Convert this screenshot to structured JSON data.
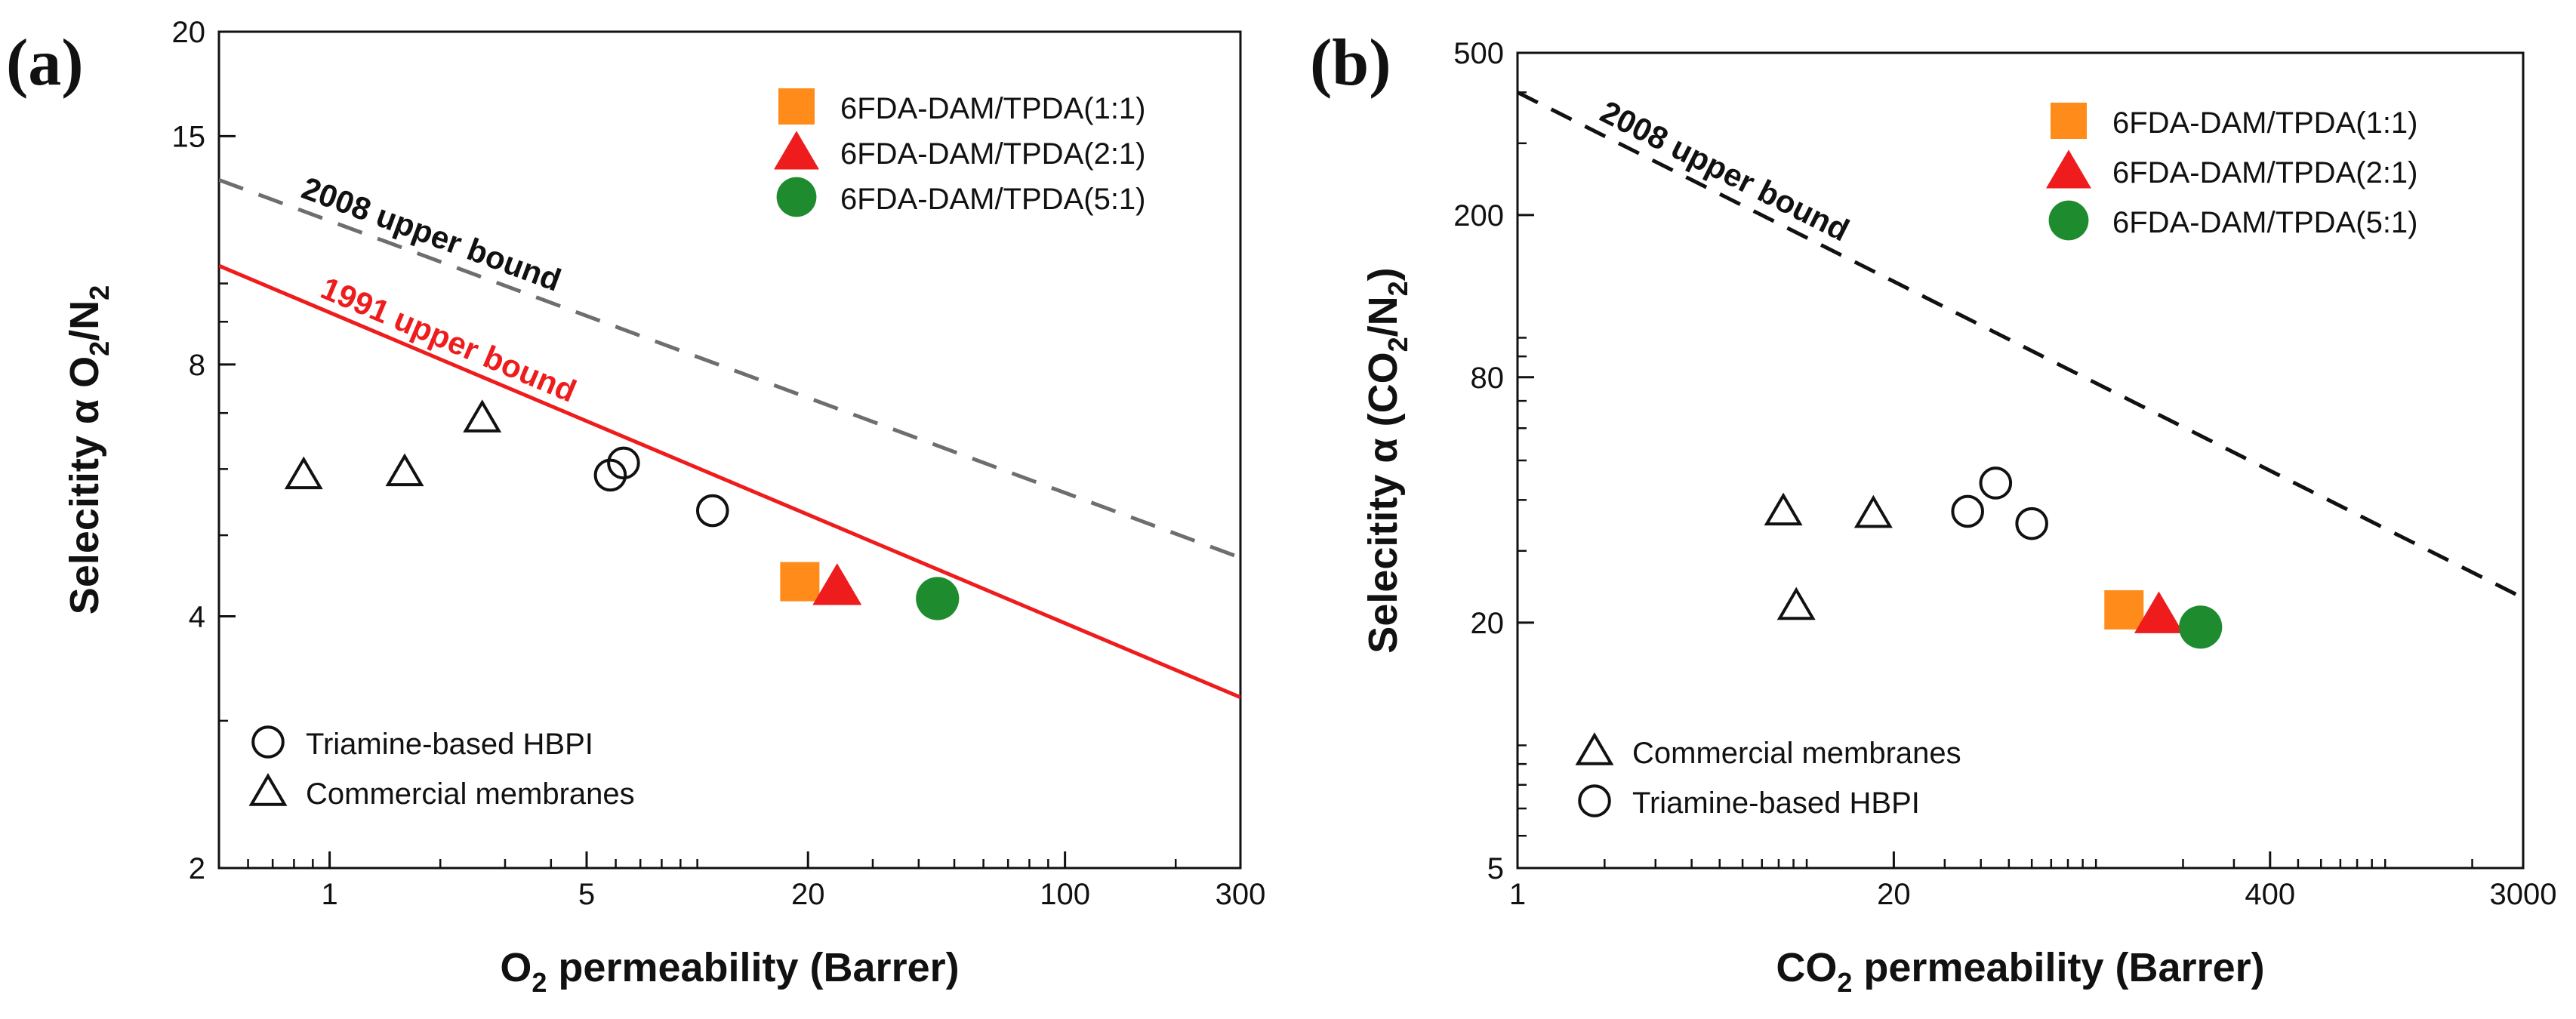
{
  "colors": {
    "orange": "#FF8C1A",
    "red": "#EE1C1C",
    "green": "#1E8C2E",
    "gray_dash": "#6E6E6E",
    "black": "#111111",
    "red_line": "#EE1C1C"
  },
  "chart_data": [
    {
      "type": "scatter",
      "panel_label": "(a)",
      "xlabel_main": "O",
      "xlabel_sub": "2",
      "xlabel_rest": " permeability (Barrer)",
      "ylabel_main": "Selecitity α O",
      "ylabel_sub1": "2",
      "ylabel_mid": "/N",
      "ylabel_sub2": "2",
      "xscale": "log",
      "yscale": "log",
      "xlim": [
        0.5,
        300
      ],
      "ylim": [
        2,
        20
      ],
      "xticks": [
        {
          "v": 1,
          "label": "1"
        },
        {
          "v": 5,
          "label": "5"
        },
        {
          "v": 20,
          "label": "20"
        },
        {
          "v": 100,
          "label": "100"
        },
        {
          "v": 300,
          "label": "300"
        }
      ],
      "yticks": [
        {
          "v": 2,
          "label": "2"
        },
        {
          "v": 4,
          "label": "4"
        },
        {
          "v": 8,
          "label": "8"
        },
        {
          "v": 15,
          "label": "15"
        },
        {
          "v": 20,
          "label": "20"
        }
      ],
      "upper_bounds": [
        {
          "name": "2008 upper bound",
          "style": "gray-dash",
          "points": [
            [
              0.5,
              13.3
            ],
            [
              300,
              4.7
            ]
          ],
          "label_x": 1.8
        },
        {
          "name": "1991 upper bound",
          "style": "red-solid",
          "points": [
            [
              0.5,
              10.5
            ],
            [
              300,
              3.2
            ]
          ],
          "label_x": 2.0
        }
      ],
      "series": [
        {
          "name": "6FDA-DAM/TPDA(1:1)",
          "marker": "square",
          "color": "orange",
          "points": [
            [
              19,
              4.4
            ]
          ]
        },
        {
          "name": "6FDA-DAM/TPDA(2:1)",
          "marker": "triangle",
          "color": "red",
          "points": [
            [
              24,
              4.35
            ]
          ]
        },
        {
          "name": "6FDA-DAM/TPDA(5:1)",
          "marker": "circle",
          "color": "green",
          "points": [
            [
              45,
              4.2
            ]
          ]
        },
        {
          "name": "Triamine-based HBPI",
          "marker": "circle-open",
          "color": "black",
          "points": [
            [
              5.8,
              5.9
            ],
            [
              6.3,
              6.1
            ],
            [
              11,
              5.35
            ]
          ]
        },
        {
          "name": "Commercial membranes",
          "marker": "triangle-open",
          "color": "black",
          "points": [
            [
              0.85,
              5.9
            ],
            [
              1.6,
              5.95
            ],
            [
              2.6,
              6.9
            ]
          ]
        }
      ],
      "legend_top": [
        "6FDA-DAM/TPDA(1:1)",
        "6FDA-DAM/TPDA(2:1)",
        "6FDA-DAM/TPDA(5:1)"
      ],
      "legend_bottom": [
        "Triamine-based HBPI",
        "Commercial membranes"
      ]
    },
    {
      "type": "scatter",
      "panel_label": "(b)",
      "xlabel_main": "CO",
      "xlabel_sub": "2",
      "xlabel_rest": " permeability (Barrer)",
      "ylabel_main": "Selecitity α (CO",
      "ylabel_sub1": "2",
      "ylabel_mid": "/N",
      "ylabel_sub2": "2",
      "ylabel_end": ")",
      "xscale": "log",
      "yscale": "log",
      "xlim": [
        1,
        3000
      ],
      "ylim": [
        5,
        500
      ],
      "xticks": [
        {
          "v": 1,
          "label": "1"
        },
        {
          "v": 20,
          "label": "20"
        },
        {
          "v": 400,
          "label": "400"
        },
        {
          "v": 3000,
          "label": "3000"
        }
      ],
      "yticks": [
        {
          "v": 5,
          "label": "5"
        },
        {
          "v": 20,
          "label": "20"
        },
        {
          "v": 80,
          "label": "80"
        },
        {
          "v": 200,
          "label": "200"
        },
        {
          "v": 500,
          "label": "500"
        }
      ],
      "upper_bounds": [
        {
          "name": "2008 upper bound",
          "style": "black-dash",
          "points": [
            [
              1,
              400
            ],
            [
              3000,
              23
            ]
          ],
          "label_x": 4.8
        }
      ],
      "series": [
        {
          "name": "6FDA-DAM/TPDA(1:1)",
          "marker": "square",
          "color": "orange",
          "points": [
            [
              125,
              21.5
            ]
          ]
        },
        {
          "name": "6FDA-DAM/TPDA(2:1)",
          "marker": "triangle",
          "color": "red",
          "points": [
            [
              165,
              21
            ]
          ]
        },
        {
          "name": "6FDA-DAM/TPDA(5:1)",
          "marker": "circle",
          "color": "green",
          "points": [
            [
              230,
              19.5
            ]
          ]
        },
        {
          "name": "Triamine-based HBPI",
          "marker": "circle-open",
          "color": "black",
          "points": [
            [
              36,
              37.5
            ],
            [
              45,
              44
            ],
            [
              60,
              35
            ]
          ]
        },
        {
          "name": "Commercial membranes",
          "marker": "triangle-open",
          "color": "black",
          "points": [
            [
              8.3,
              37.5
            ],
            [
              9.2,
              22
            ],
            [
              17,
              37
            ]
          ]
        }
      ],
      "legend_top": [
        "6FDA-DAM/TPDA(1:1)",
        "6FDA-DAM/TPDA(2:1)",
        "6FDA-DAM/TPDA(5:1)"
      ],
      "legend_bottom": [
        "Commercial membranes",
        "Triamine-based HBPI"
      ]
    }
  ]
}
